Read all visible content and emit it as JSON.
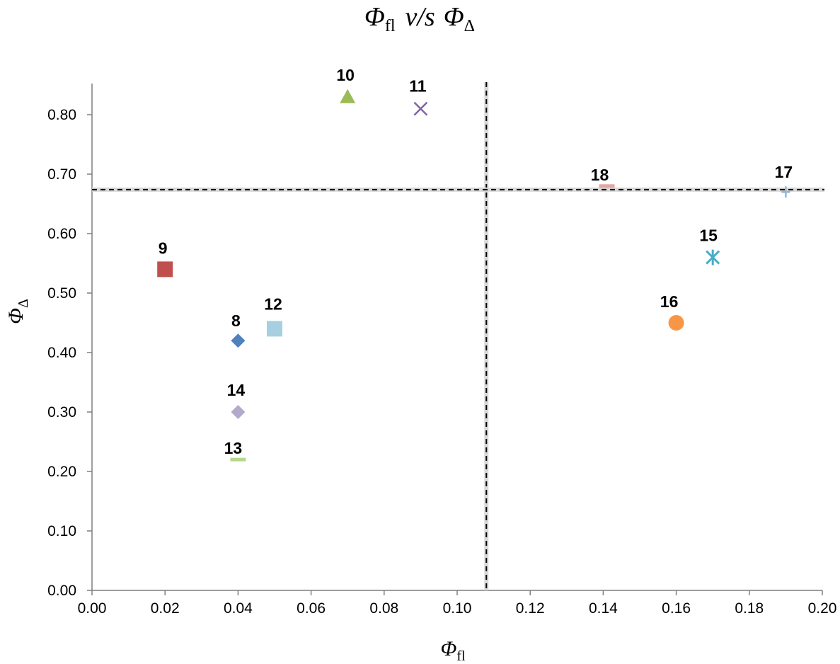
{
  "chart_data": {
    "type": "scatter",
    "title": {
      "symbol": "Φ",
      "sub_left": "fl",
      "middle": "v/s",
      "sub_right": "Δ"
    },
    "xlabel": {
      "symbol": "Φ",
      "sub": "fl"
    },
    "ylabel": {
      "symbol": "Φ",
      "sub": "Δ"
    },
    "xlim": [
      0,
      0.2
    ],
    "ylim": [
      0,
      0.85
    ],
    "x_ticks": [
      0,
      0.02,
      0.04,
      0.06,
      0.08,
      0.1,
      0.12,
      0.14,
      0.16,
      0.18,
      0.2
    ],
    "x_tick_labels": [
      "0.00",
      "0.02",
      "0.04",
      "0.06",
      "0.08",
      "0.10",
      "0.12",
      "0.14",
      "0.16",
      "0.18",
      "0.20"
    ],
    "y_ticks": [
      0,
      0.1,
      0.2,
      0.3,
      0.4,
      0.5,
      0.6,
      0.7,
      0.8
    ],
    "y_tick_labels": [
      "0.00",
      "0.10",
      "0.20",
      "0.30",
      "0.40",
      "0.50",
      "0.60",
      "0.70",
      "0.80"
    ],
    "grid": false,
    "reference_lines": {
      "vertical_x": 0.108,
      "horizontal_y": 0.674
    },
    "points": [
      {
        "label": "8",
        "x": 0.04,
        "y": 0.42,
        "marker": "diamond",
        "color": "#4f81bd"
      },
      {
        "label": "9",
        "x": 0.02,
        "y": 0.54,
        "marker": "square",
        "color": "#c0504d"
      },
      {
        "label": "10",
        "x": 0.07,
        "y": 0.83,
        "marker": "triangle",
        "color": "#9bbb59"
      },
      {
        "label": "11",
        "x": 0.09,
        "y": 0.81,
        "marker": "x",
        "color": "#8064a2"
      },
      {
        "label": "12",
        "x": 0.05,
        "y": 0.44,
        "marker": "square",
        "color": "#a6d0e0"
      },
      {
        "label": "13",
        "x": 0.04,
        "y": 0.22,
        "marker": "dash",
        "color": "#b3d88c"
      },
      {
        "label": "14",
        "x": 0.04,
        "y": 0.3,
        "marker": "diamond",
        "color": "#b2a9cc"
      },
      {
        "label": "15",
        "x": 0.17,
        "y": 0.56,
        "marker": "star",
        "color": "#4bacc6"
      },
      {
        "label": "16",
        "x": 0.16,
        "y": 0.45,
        "marker": "circle",
        "color": "#f79646"
      },
      {
        "label": "17",
        "x": 0.19,
        "y": 0.67,
        "marker": "plus",
        "color": "#95b3d7"
      },
      {
        "label": "18",
        "x": 0.141,
        "y": 0.68,
        "marker": "dash",
        "color": "#e6a5a5"
      }
    ]
  }
}
